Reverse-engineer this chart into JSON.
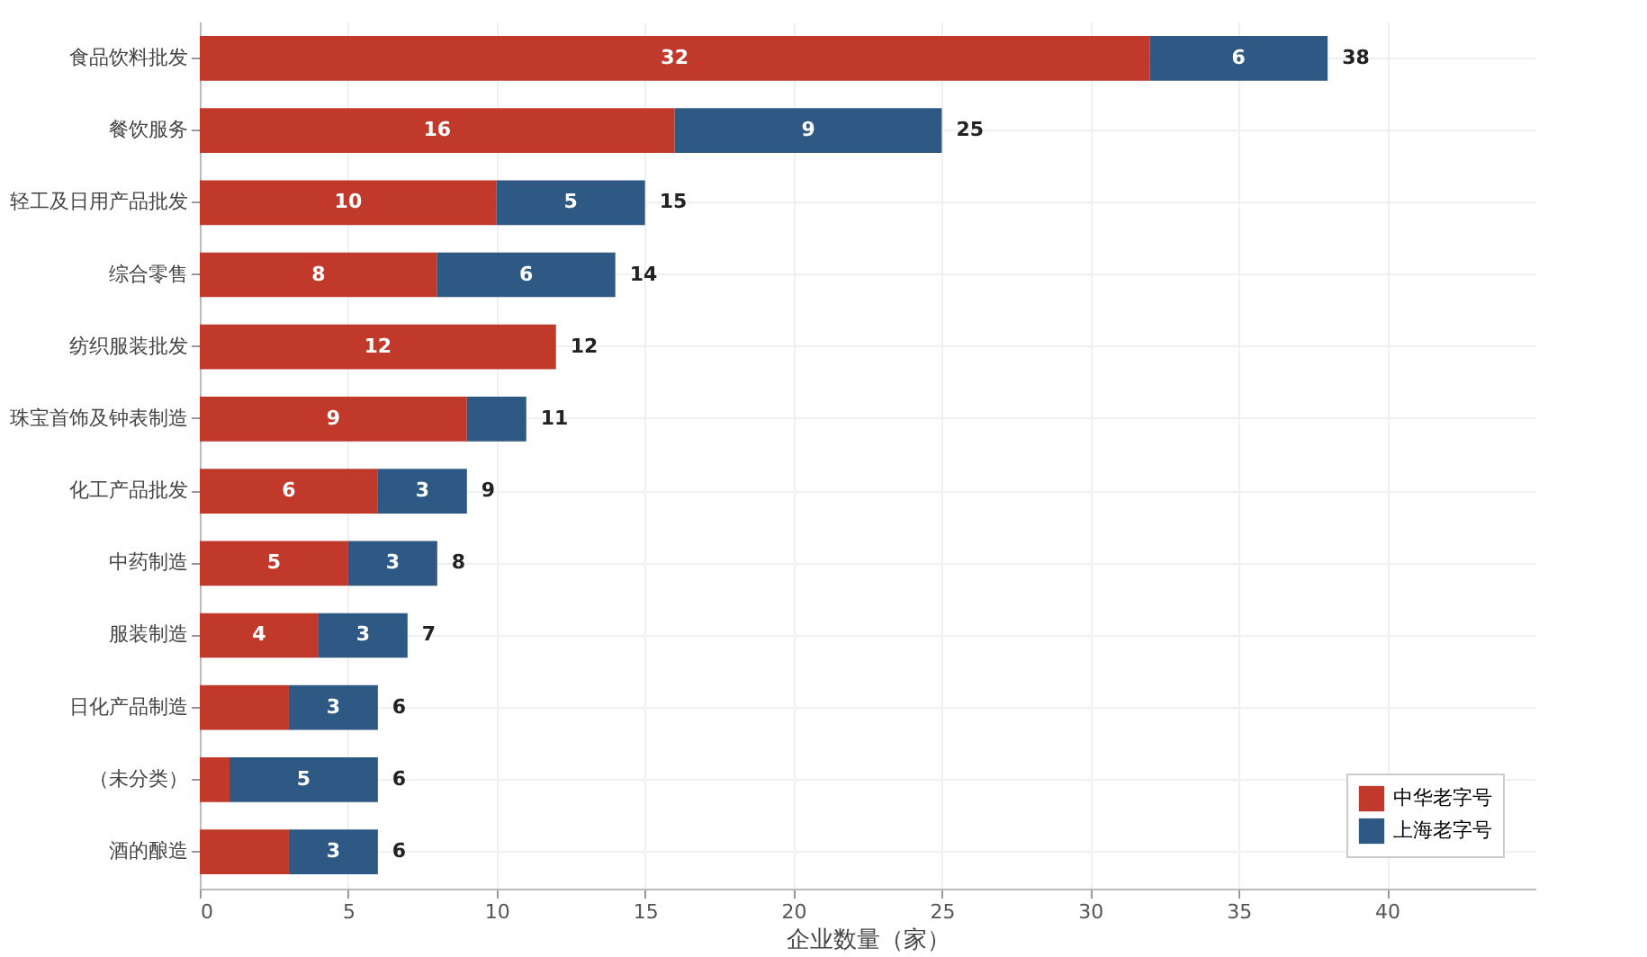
{
  "chart_data": {
    "type": "bar",
    "orientation": "horizontal",
    "stacked": true,
    "categories": [
      "食品饮料批发",
      "餐饮服务",
      "轻工及日用产品批发",
      "综合零售",
      "纺织服装批发",
      "珠宝首饰及钟表制造",
      "化工产品批发",
      "中药制造",
      "服装制造",
      "日化产品制造",
      "（未分类）",
      "酒的酿造"
    ],
    "series": [
      {
        "name": "中华老字号",
        "color": "#c0392b",
        "values": [
          32,
          16,
          10,
          8,
          12,
          9,
          6,
          5,
          4,
          3,
          1,
          3
        ],
        "value_labels": [
          "32",
          "16",
          "10",
          "8",
          "12",
          "9",
          "6",
          "5",
          "4",
          null,
          null,
          null
        ]
      },
      {
        "name": "上海老字号",
        "color": "#2e5984",
        "values": [
          6,
          9,
          5,
          6,
          null,
          2,
          3,
          3,
          3,
          3,
          5,
          3
        ],
        "value_labels": [
          "6",
          "9",
          "5",
          "6",
          null,
          null,
          "3",
          "3",
          "3",
          "3",
          "5",
          "3"
        ]
      }
    ],
    "totals": [
      "38",
      "25",
      "15",
      "14",
      "12",
      "11",
      "9",
      "8",
      "7",
      "6",
      "6",
      "6"
    ],
    "xlabel": "企业数量（家）",
    "xlim": [
      0,
      45
    ],
    "xticks": [
      0,
      5,
      10,
      15,
      20,
      25,
      30,
      35,
      40
    ],
    "grid": true,
    "legend": "bottom right"
  }
}
